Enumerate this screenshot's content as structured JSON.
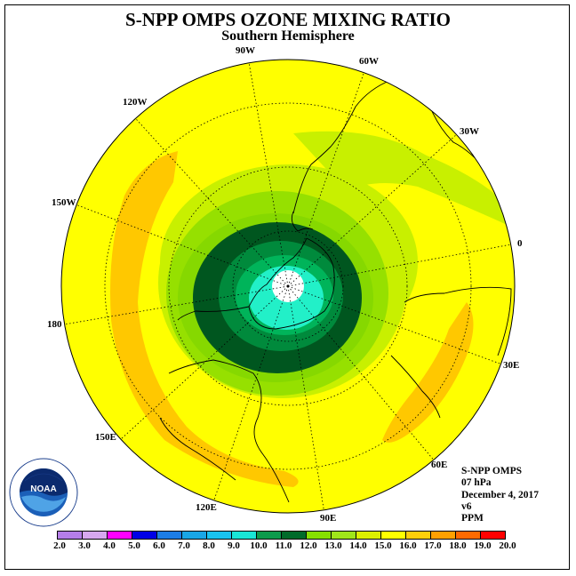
{
  "title": "S-NPP OMPS OZONE MIXING RATIO",
  "subtitle": "Southern Hemisphere",
  "longitude_labels": [
    "90W",
    "60W",
    "120W",
    "30W",
    "150W",
    "0",
    "180",
    "30E",
    "150E",
    "60E",
    "120E",
    "90E"
  ],
  "info": {
    "instrument": "S-NPP OMPS",
    "level": "07 hPa",
    "date": "December 4, 2017",
    "version": "v6",
    "units": "PPM"
  },
  "logo_text": "NOAA",
  "colorbar": {
    "ticks": [
      "2.0",
      "3.0",
      "4.0",
      "5.0",
      "6.0",
      "7.0",
      "8.0",
      "9.0",
      "10.0",
      "11.0",
      "12.0",
      "13.0",
      "14.0",
      "15.0",
      "16.0",
      "17.0",
      "18.0",
      "19.0",
      "20.0"
    ],
    "colors": [
      "#b57ee8",
      "#d7a8ef",
      "#ff00ff",
      "#0000e6",
      "#1c7de6",
      "#19a6e6",
      "#19c3f0",
      "#19e6d6",
      "#0c9a4c",
      "#006b2a",
      "#86e000",
      "#a0e61a",
      "#dcf000",
      "#ffff00",
      "#ffcf0a",
      "#ffa000",
      "#ff6a00",
      "#ff0000",
      "#9b5a3c"
    ]
  },
  "colors": {
    "yellow": "#ffff00",
    "orange": "#ffc800",
    "light_green": "#c8f000",
    "green": "#96e000",
    "mid_green": "#006b2a",
    "dark_green": "#00561f",
    "cyan": "#22f0c8"
  }
}
